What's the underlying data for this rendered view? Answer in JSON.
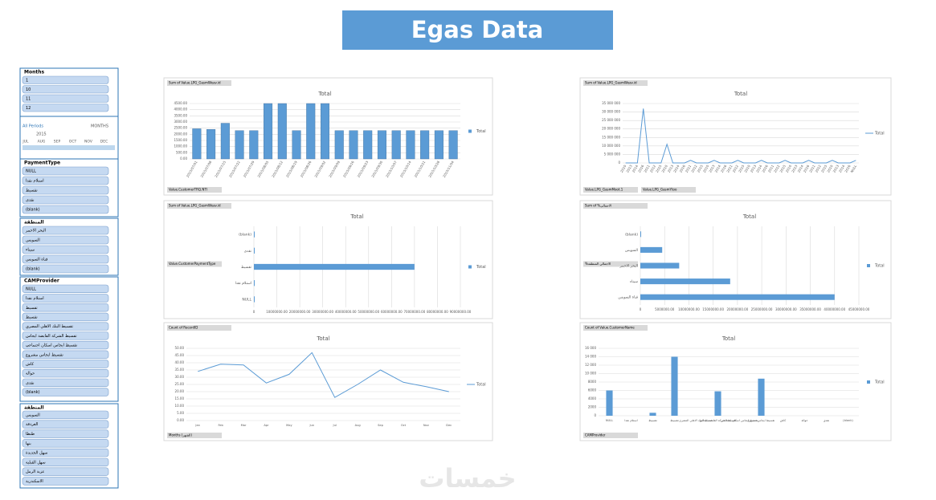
{
  "header": {
    "title": "Egas Data",
    "watermark": "خمسات"
  },
  "slicers": [
    {
      "title": "Months",
      "items": [
        "1",
        "10",
        "11",
        "12"
      ]
    },
    {
      "title": "PaymentType",
      "items": [
        "NULL",
        "استلام نقدا",
        "تقسيط",
        "نقدى",
        "(blank)"
      ]
    },
    {
      "title": "المنطقة",
      "items": [
        "البحر الاحمر",
        "السويس",
        "سيناء",
        "قناة السويس",
        "(blank)"
      ]
    },
    {
      "title": "CAMProvider",
      "items": [
        "NULL",
        "استلام نقدا",
        "تقسيط",
        "تقسيط",
        "تقسيط البنك الاهلي المصري",
        "تقسيط الشركة القابضة ايجاس",
        "تقسيط ايجاس اسكان اجتماعي",
        "تقسيط ايجاس مشروع",
        "كاش",
        "حوالة",
        "نقدى",
        "(blank)"
      ]
    },
    {
      "title": "المنطقة",
      "items": [
        "السويس",
        "الغردقة",
        "طنطا",
        "بنها",
        "سهل الجديدة",
        "سهل القبلية",
        "عزبة الرمل",
        "الاسكندرية"
      ]
    }
  ],
  "timeline": {
    "label": "All Periods",
    "unit": "MONTHS",
    "year": "2015",
    "months": [
      "JUL",
      "AUG",
      "SEP",
      "OCT",
      "NOV",
      "DEC"
    ]
  },
  "chart_data": [
    {
      "type": "bar",
      "title": "Total",
      "field": "Sum of Value.LPG_GasmWeav.id",
      "filters": [
        "Value.CustomerTRQ.NTI"
      ],
      "categories": [
        "2015/07/01",
        "2015/07/08",
        "2015/07/15",
        "2015/07/22",
        "2015/07/29",
        "2015/08/05",
        "2015/08/12",
        "2015/08/19",
        "2015/08/26",
        "2015/09/02",
        "2015/09/09",
        "2015/09/16",
        "2015/09/23",
        "2015/09/30",
        "2015/10/07",
        "2015/10/14",
        "2015/10/21",
        "2015/10/28",
        "2015/11/04"
      ],
      "series": [
        {
          "name": "Total",
          "color": "#5b9bd5",
          "values": [
            2450,
            2400,
            2900,
            2300,
            2300,
            4500,
            4500,
            2300,
            4500,
            4500,
            2300,
            2300,
            2300,
            2300,
            2300,
            2300,
            2300,
            2300,
            2300
          ]
        }
      ],
      "ylim": [
        0,
        4500
      ],
      "yticks": [
        {
          "value": 0,
          "label": "0.00"
        },
        {
          "value": 500,
          "label": "500.00"
        },
        {
          "value": 1000,
          "label": "1000.00"
        },
        {
          "value": 1500,
          "label": "1500.00"
        },
        {
          "value": 2000,
          "label": "2000.00"
        },
        {
          "value": 2500,
          "label": "2500.00"
        },
        {
          "value": 3000,
          "label": "3000.00"
        },
        {
          "value": 3500,
          "label": "3500.00"
        },
        {
          "value": 4000,
          "label": "4000.00"
        },
        {
          "value": 4500,
          "label": "4500.00"
        }
      ],
      "grid": true
    },
    {
      "type": "line",
      "title": "Total",
      "field": "Sum of Value.LPG_GasmWeav.id",
      "filters": [
        "Value.LPG_GasmMoot.1",
        "Value.LPG_GasmYtoo"
      ],
      "categories": [
        "2010",
        "2013",
        "2014",
        "2016",
        "2011",
        "2012",
        "2015",
        "2010",
        "2013",
        "2014",
        "2016",
        "2011",
        "2012",
        "2015",
        "2010",
        "2013",
        "2014",
        "2016",
        "2011",
        "2012",
        "2015",
        "2010",
        "2013",
        "2014",
        "2016",
        "2011",
        "2012",
        "2015",
        "2010",
        "2013",
        "2014",
        "2016",
        "2011",
        "2012",
        "2015",
        "2010",
        "2013",
        "2014",
        "2016",
        "NULL"
      ],
      "series": [
        {
          "name": "Total",
          "color": "#5b9bd5",
          "values": [
            0,
            0,
            0,
            32000000,
            0,
            0,
            0,
            11000000,
            0,
            0,
            0,
            1500000,
            0,
            0,
            0,
            1500000,
            0,
            0,
            0,
            1500000,
            0,
            0,
            0,
            1500000,
            0,
            0,
            0,
            1500000,
            0,
            0,
            0,
            1500000,
            0,
            0,
            0,
            1500000,
            0,
            0,
            0,
            1500000
          ]
        }
      ],
      "ylim": [
        0,
        35000000
      ],
      "yticks": [
        {
          "value": 0,
          "label": "0"
        },
        {
          "value": 5000000,
          "label": "5 000 000"
        },
        {
          "value": 10000000,
          "label": "10 000 000"
        },
        {
          "value": 15000000,
          "label": "15 000 000"
        },
        {
          "value": 20000000,
          "label": "20 000 000"
        },
        {
          "value": 25000000,
          "label": "25 000 000"
        },
        {
          "value": 30000000,
          "label": "30 000 000"
        },
        {
          "value": 35000000,
          "label": "35 000 000"
        }
      ],
      "grid": true
    },
    {
      "type": "hbar",
      "title": "Total",
      "field": "Sum of Value.LPG_GasmWeav.id",
      "filters": [
        "Value.CustomerPaymentType"
      ],
      "categories": [
        "NULL",
        "استلام نقدا",
        "تقسيط",
        "نقدى",
        "(blank)"
      ],
      "series": [
        {
          "name": "Total",
          "color": "#5b9bd5",
          "values": [
            0,
            300000,
            70000000,
            0,
            0
          ]
        }
      ],
      "xlim": [
        0,
        90000000
      ],
      "xticks": [
        {
          "value": 0,
          "label": "0"
        },
        {
          "value": 10000000,
          "label": "10000000.00"
        },
        {
          "value": 20000000,
          "label": "20000000.00"
        },
        {
          "value": 30000000,
          "label": "30000000.00"
        },
        {
          "value": 40000000,
          "label": "40000000.00"
        },
        {
          "value": 50000000,
          "label": "50000000.00"
        },
        {
          "value": 60000000,
          "label": "60000000.00"
        },
        {
          "value": 70000000,
          "label": "70000000.00"
        },
        {
          "value": 80000000,
          "label": "80000000.00"
        },
        {
          "value": 90000000,
          "label": "90000000.00"
        }
      ],
      "grid": true
    },
    {
      "type": "hbar",
      "title": "Total",
      "field": "Sum of %الاجمالي",
      "filters": [
        "%الاجمالي المنطقة"
      ],
      "categories": [
        "قناة السويس",
        "سيناء",
        "البحر الاحمر",
        "السويس",
        "(blank)"
      ],
      "series": [
        {
          "name": "Total",
          "color": "#5b9bd5",
          "values": [
            40000000,
            18500000,
            8000000,
            4500000,
            0
          ]
        }
      ],
      "xlim": [
        0,
        45000000
      ],
      "xticks": [
        {
          "value": 0,
          "label": "0"
        },
        {
          "value": 5000000,
          "label": "5000000.00"
        },
        {
          "value": 10000000,
          "label": "10000000.00"
        },
        {
          "value": 15000000,
          "label": "15000000.00"
        },
        {
          "value": 20000000,
          "label": "20000000.00"
        },
        {
          "value": 25000000,
          "label": "25000000.00"
        },
        {
          "value": 30000000,
          "label": "30000000.00"
        },
        {
          "value": 35000000,
          "label": "35000000.00"
        },
        {
          "value": 40000000,
          "label": "40000000.00"
        },
        {
          "value": 45000000,
          "label": "45000000.00"
        }
      ],
      "grid": true
    },
    {
      "type": "line",
      "title": "Total",
      "field": "Count of RecordID",
      "filters": [
        "Months (الشهر)"
      ],
      "categories": [
        "Jan",
        "Feb",
        "Mar",
        "Apr",
        "May",
        "Jun",
        "Jul",
        "Aug",
        "Sep",
        "Oct",
        "Nov",
        "Dec"
      ],
      "series": [
        {
          "name": "Total",
          "color": "#5b9bd5",
          "values": [
            34,
            39,
            38.5,
            26,
            32,
            47,
            16,
            25,
            35,
            26.5,
            23.5,
            20
          ]
        }
      ],
      "ylim": [
        0,
        50
      ],
      "yticks": [
        {
          "value": 0,
          "label": "0.00"
        },
        {
          "value": 5,
          "label": "5.00"
        },
        {
          "value": 10,
          "label": "10.00"
        },
        {
          "value": 15,
          "label": "15.00"
        },
        {
          "value": 20,
          "label": "20.00"
        },
        {
          "value": 25,
          "label": "25.00"
        },
        {
          "value": 30,
          "label": "30.00"
        },
        {
          "value": 35,
          "label": "35.00"
        },
        {
          "value": 40,
          "label": "40.00"
        },
        {
          "value": 45,
          "label": "45.00"
        },
        {
          "value": 50,
          "label": "50.00"
        }
      ],
      "grid": true
    },
    {
      "type": "bar",
      "title": "Total",
      "field": "Count of Value.CustomerName",
      "filters": [
        "CAMProvider"
      ],
      "categories": [
        "NULL",
        "استلام نقدا",
        "تقسيط",
        "تقسيط",
        "تقسيط البنك الاهلي المصري",
        "تقسيط الشركة القابضة ايجاس",
        "تقسيط ايجاس اسكان اجتماعي",
        "تقسيط ايجاس مشروع",
        "كاش",
        "حوالة",
        "نقدى",
        "(blank)"
      ],
      "series": [
        {
          "name": "Total",
          "color": "#5b9bd5",
          "values": [
            6000,
            0,
            700,
            14000,
            0,
            5800,
            0,
            8800,
            0,
            0,
            0,
            0
          ]
        }
      ],
      "ylim": [
        0,
        16000
      ],
      "yticks": [
        0,
        {
          "value": 2000,
          "label": "2000"
        },
        {
          "value": 4000,
          "label": "4000"
        },
        {
          "value": 6000,
          "label": "6000"
        },
        {
          "value": 8000,
          "label": "8000"
        },
        {
          "value": 10000,
          "label": "10 000"
        },
        {
          "value": 12000,
          "label": "12 000"
        },
        {
          "value": 14000,
          "label": "14 000"
        },
        {
          "value": 16000,
          "label": "16 000"
        }
      ],
      "grid": true
    }
  ]
}
